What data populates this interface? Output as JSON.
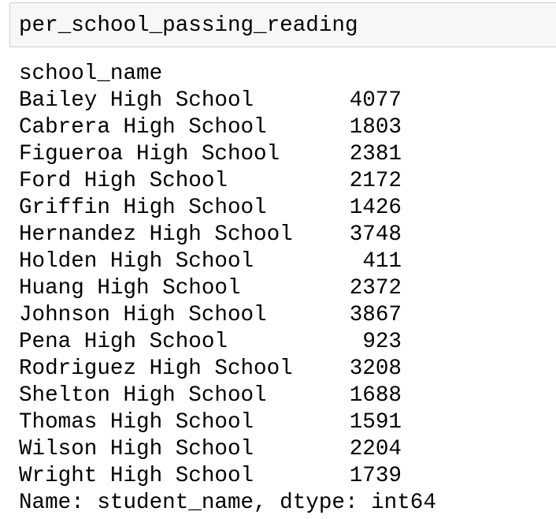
{
  "input": {
    "code": "per_school_passing_reading"
  },
  "output": {
    "index_name": "school_name",
    "rows": [
      {
        "name": "Bailey High School",
        "value": 4077
      },
      {
        "name": "Cabrera High School",
        "value": 1803
      },
      {
        "name": "Figueroa High School",
        "value": 2381
      },
      {
        "name": "Ford High School",
        "value": 2172
      },
      {
        "name": "Griffin High School",
        "value": 1426
      },
      {
        "name": "Hernandez High School",
        "value": 3748
      },
      {
        "name": "Holden High School",
        "value": 411
      },
      {
        "name": "Huang High School",
        "value": 2372
      },
      {
        "name": "Johnson High School",
        "value": 3867
      },
      {
        "name": "Pena High School",
        "value": 923
      },
      {
        "name": "Rodriguez High School",
        "value": 3208
      },
      {
        "name": "Shelton High School",
        "value": 1688
      },
      {
        "name": "Thomas High School",
        "value": 1591
      },
      {
        "name": "Wilson High School",
        "value": 2204
      },
      {
        "name": "Wright High School",
        "value": 1739
      }
    ],
    "footer": "Name: student_name, dtype: int64"
  }
}
